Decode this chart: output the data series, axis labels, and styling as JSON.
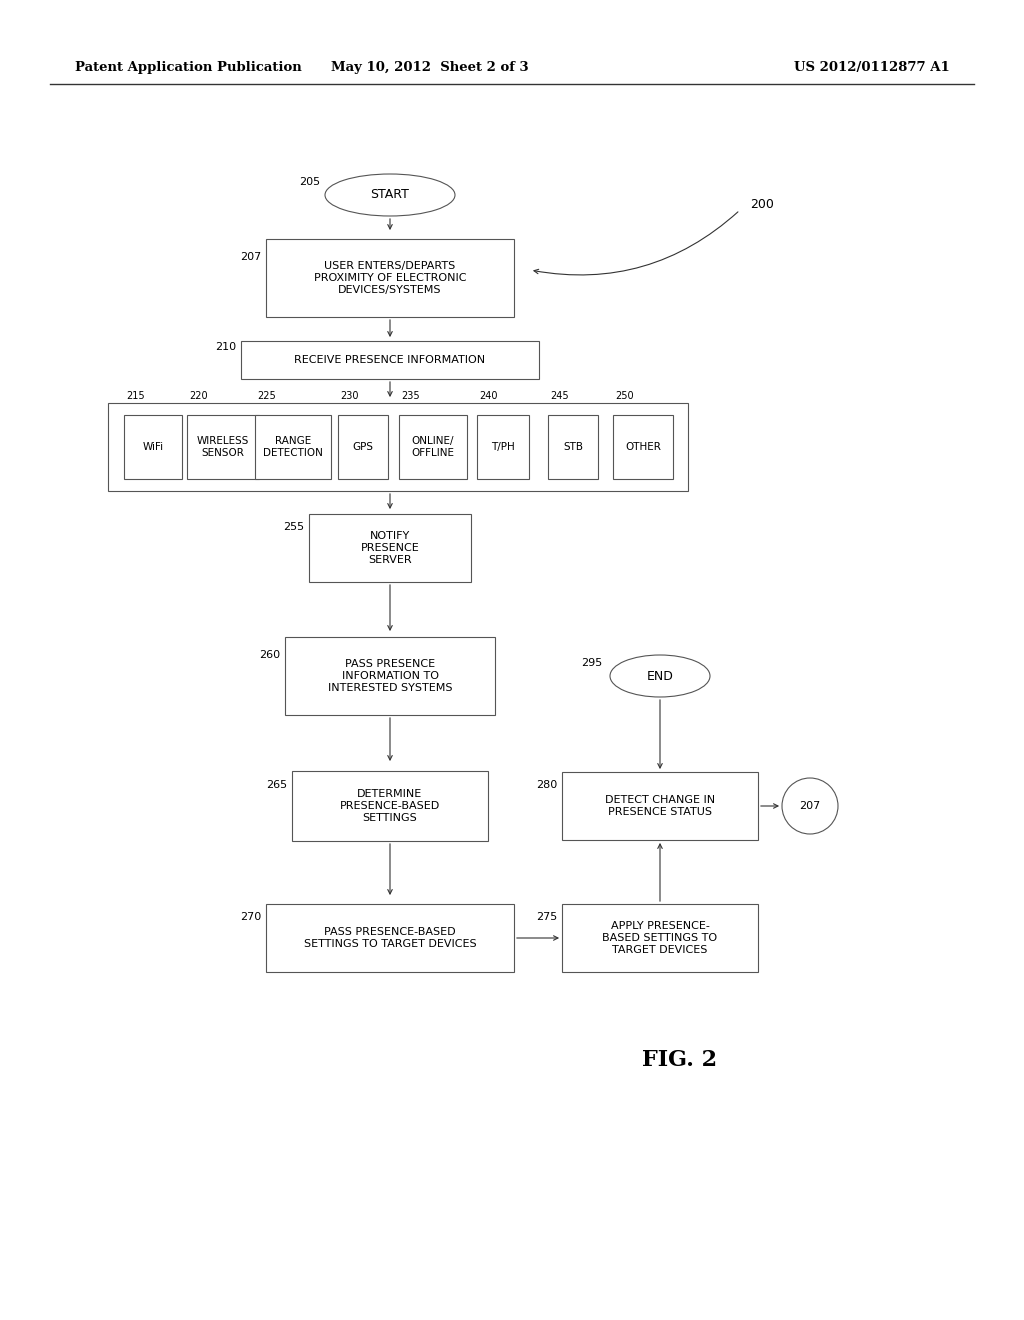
{
  "bg_color": "#ffffff",
  "header_left": "Patent Application Publication",
  "header_mid": "May 10, 2012  Sheet 2 of 3",
  "header_right": "US 2012/0112877 A1",
  "fig_label": "FIG. 2"
}
